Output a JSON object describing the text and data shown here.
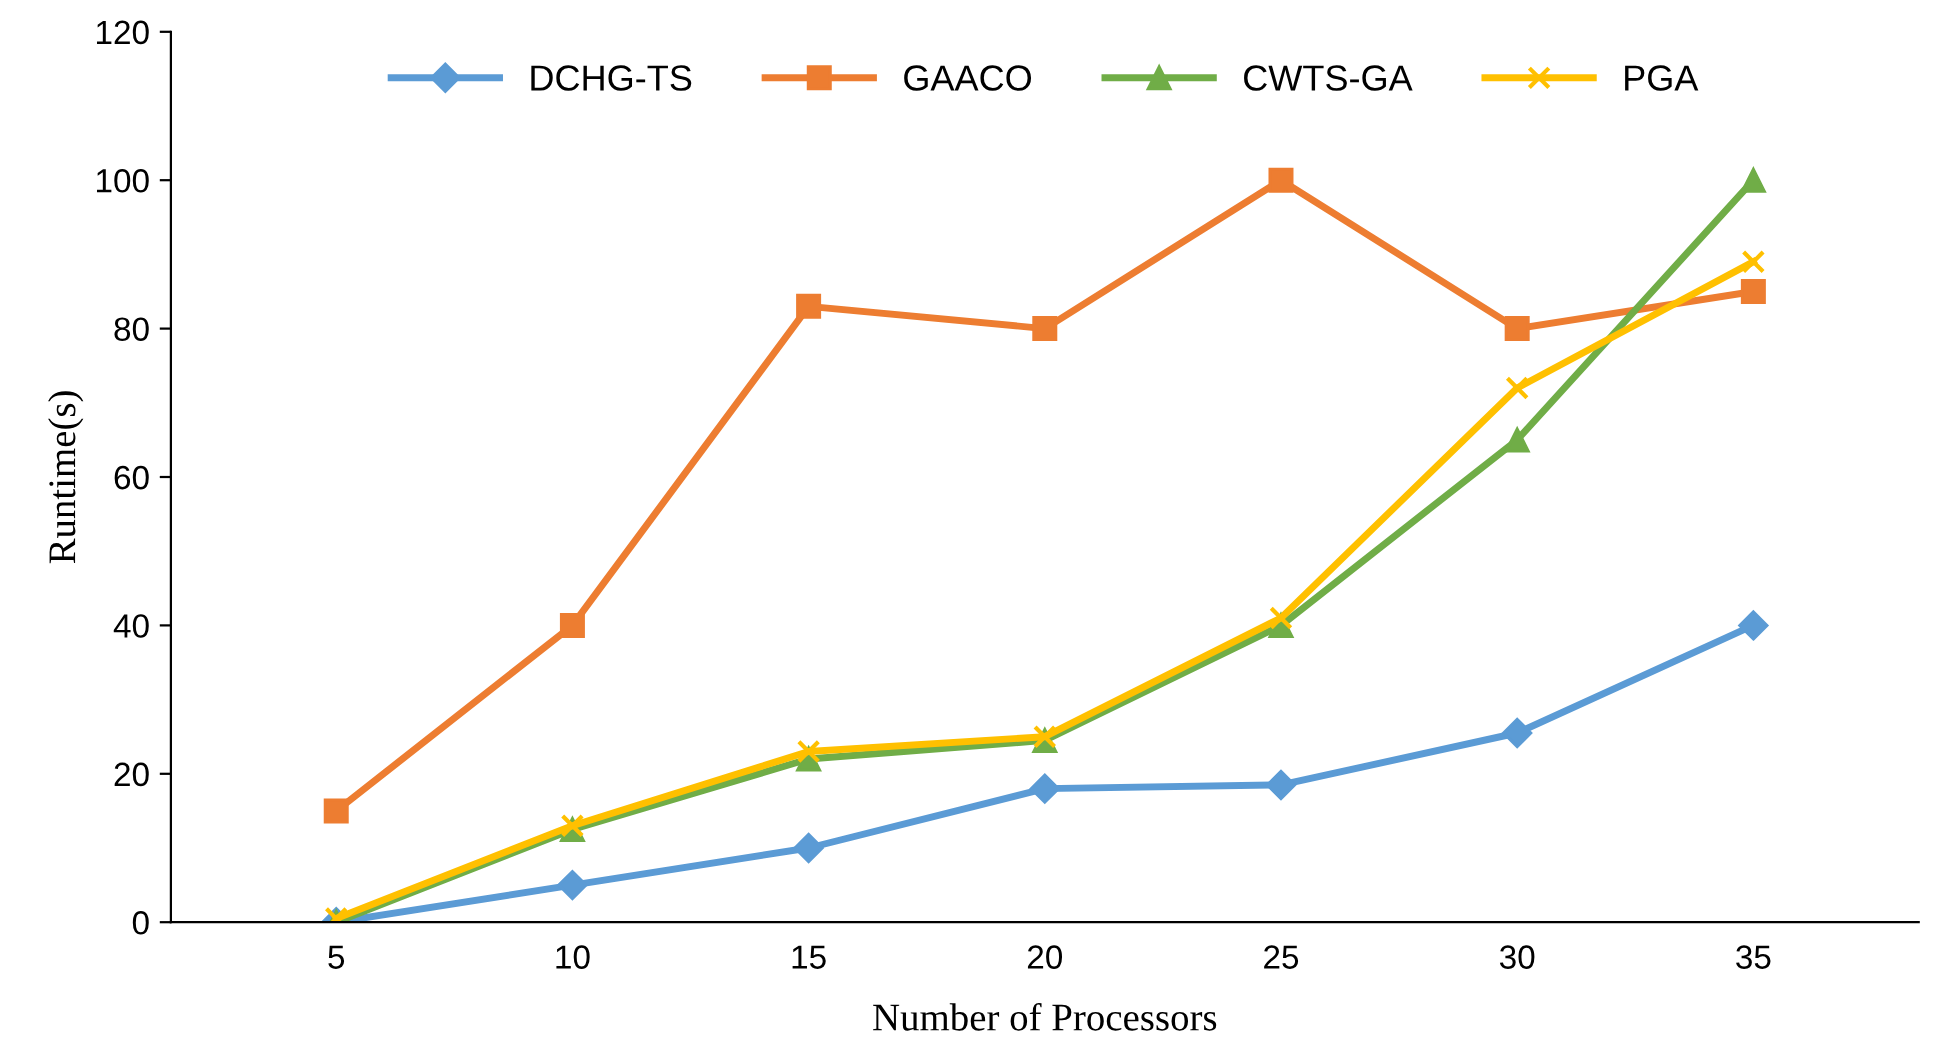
{
  "chart_data": {
    "type": "line",
    "xlabel": "Number of Processors",
    "ylabel": "Runtime(s)",
    "categories": [
      "5",
      "10",
      "15",
      "20",
      "25",
      "30",
      "35"
    ],
    "ylim": [
      0,
      120
    ],
    "yticks": [
      0,
      20,
      40,
      60,
      80,
      100,
      120
    ],
    "grid": false,
    "legend": "top",
    "line_style": "solid",
    "series": [
      {
        "name": "DCHG-TS",
        "color": "#5b9bd5",
        "marker": "diamond",
        "values": [
          0,
          5,
          10,
          18,
          18.5,
          25.5,
          40
        ]
      },
      {
        "name": "GAACO",
        "color": "#ed7d31",
        "marker": "square",
        "values": [
          15,
          40,
          83,
          80,
          100,
          80,
          85
        ]
      },
      {
        "name": "CWTS-GA",
        "color": "#70ad47",
        "marker": "triangle",
        "values": [
          0,
          12.5,
          22,
          24.5,
          40,
          65,
          100
        ]
      },
      {
        "name": "PGA",
        "color": "#ffc000",
        "marker": "cross",
        "values": [
          0.5,
          13,
          23,
          25,
          41,
          72,
          89
        ]
      }
    ]
  }
}
